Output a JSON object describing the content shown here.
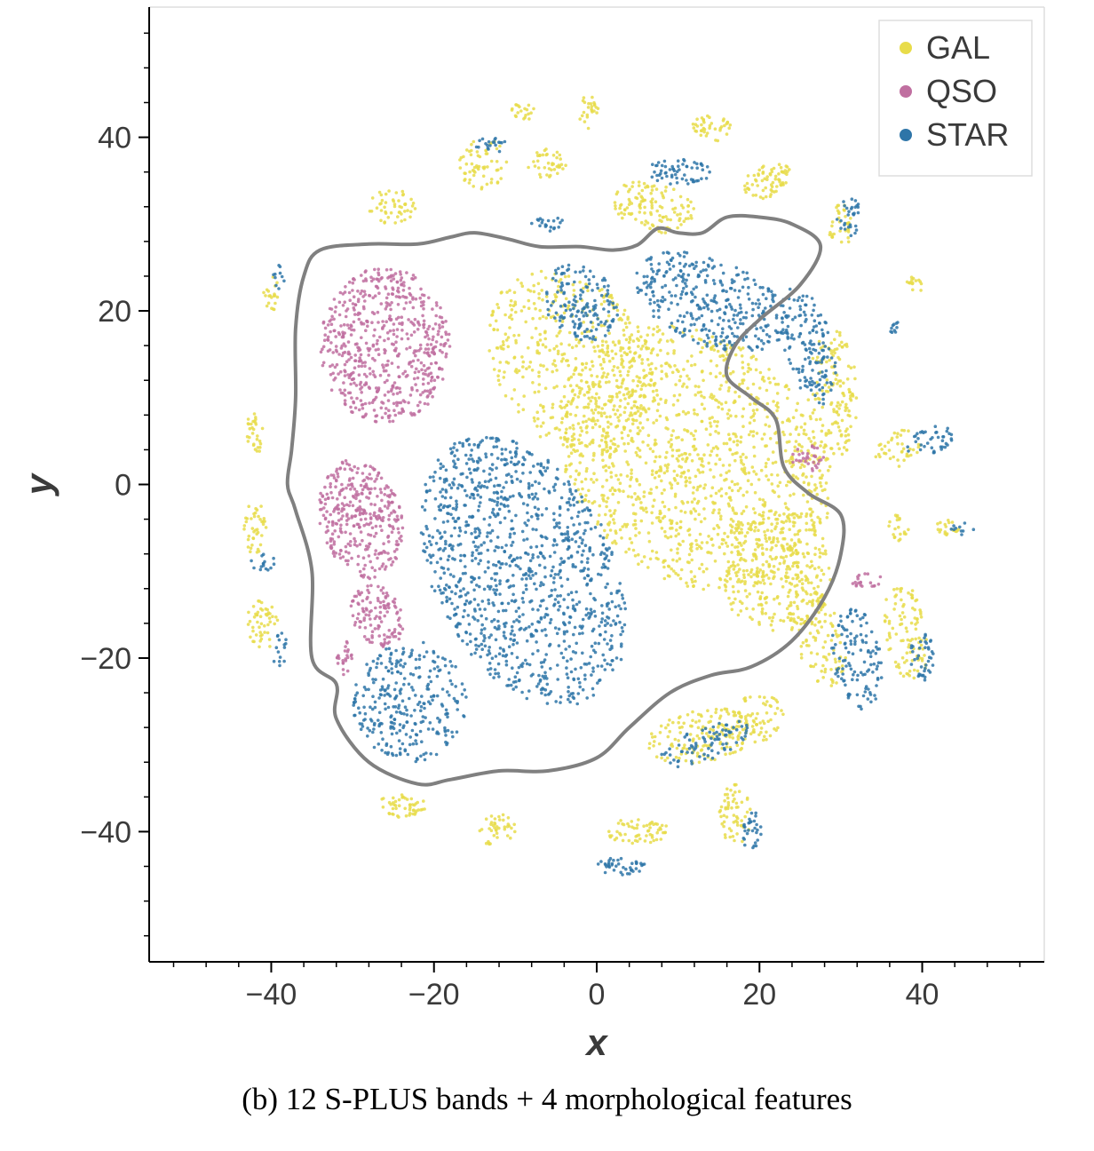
{
  "chart_data": {
    "type": "scatter",
    "xlabel": "x",
    "ylabel": "y",
    "xlim": [
      -55,
      55
    ],
    "ylim": [
      -55,
      55
    ],
    "xticks": [
      -40,
      -20,
      0,
      20,
      40
    ],
    "yticks": [
      -40,
      -20,
      0,
      20,
      40
    ],
    "xtick_labels": [
      "−40",
      "−20",
      "0",
      "20",
      "40"
    ],
    "ytick_labels": [
      "−40",
      "−20",
      "0",
      "20",
      "40"
    ],
    "minor_tick_step": 4,
    "legend": {
      "placement": "top-right",
      "entries": [
        "GAL",
        "QSO",
        "STAR"
      ]
    },
    "colors": {
      "GAL": "#e8dc4a",
      "QSO": "#c06fa0",
      "STAR": "#2e75a8",
      "contour": "#808080"
    },
    "series": [
      {
        "name": "GAL",
        "regions": [
          {
            "cx": 12,
            "cy": 3,
            "rx": 18,
            "ry": 14,
            "rot": -35,
            "n": 1300
          },
          {
            "cx": -3,
            "cy": 14,
            "rx": 12,
            "ry": 9,
            "rot": -50,
            "n": 450
          },
          {
            "cx": 22,
            "cy": -10,
            "rx": 7,
            "ry": 7,
            "rot": 0,
            "n": 250
          },
          {
            "cx": 29,
            "cy": 10,
            "rx": 3,
            "ry": 8,
            "rot": 0,
            "n": 150
          },
          {
            "cx": 27,
            "cy": -17,
            "rx": 3,
            "ry": 7,
            "rot": 20,
            "n": 130
          },
          {
            "cx": 38,
            "cy": -17,
            "rx": 2.5,
            "ry": 6,
            "rot": 10,
            "n": 100
          },
          {
            "cx": 7,
            "cy": 32,
            "rx": 5,
            "ry": 3,
            "rot": -10,
            "n": 120
          },
          {
            "cx": 21,
            "cy": 35,
            "rx": 3,
            "ry": 2,
            "rot": 20,
            "n": 70
          },
          {
            "cx": -14,
            "cy": 37,
            "rx": 3,
            "ry": 3,
            "rot": 0,
            "n": 60
          },
          {
            "cx": -25,
            "cy": 32,
            "rx": 3,
            "ry": 2,
            "rot": 0,
            "n": 50
          },
          {
            "cx": -6,
            "cy": 37,
            "rx": 2.5,
            "ry": 1.8,
            "rot": 0,
            "n": 40
          },
          {
            "cx": 14,
            "cy": 41,
            "rx": 2.5,
            "ry": 1.5,
            "rot": 0,
            "n": 40
          },
          {
            "cx": -1,
            "cy": 43,
            "rx": 1.2,
            "ry": 2,
            "rot": 0,
            "n": 25
          },
          {
            "cx": -9,
            "cy": 43,
            "rx": 1.5,
            "ry": 1,
            "rot": 0,
            "n": 20
          },
          {
            "cx": 30,
            "cy": 30,
            "rx": 1.5,
            "ry": 3,
            "rot": 0,
            "n": 35
          },
          {
            "cx": 37,
            "cy": 4,
            "rx": 3,
            "ry": 2,
            "rot": 30,
            "n": 40
          },
          {
            "cx": 37,
            "cy": -5,
            "rx": 1.5,
            "ry": 1.5,
            "rot": 0,
            "n": 20
          },
          {
            "cx": 43,
            "cy": -5,
            "rx": 1.5,
            "ry": 1,
            "rot": 0,
            "n": 20
          },
          {
            "cx": 13,
            "cy": -29,
            "rx": 7,
            "ry": 3,
            "rot": 10,
            "n": 160
          },
          {
            "cx": 20,
            "cy": -27,
            "rx": 3,
            "ry": 3,
            "rot": 0,
            "n": 60
          },
          {
            "cx": 17,
            "cy": -38,
            "rx": 2,
            "ry": 3.5,
            "rot": 0,
            "n": 60
          },
          {
            "cx": 5,
            "cy": -40,
            "rx": 4,
            "ry": 1.5,
            "rot": 0,
            "n": 60
          },
          {
            "cx": -12,
            "cy": -40,
            "rx": 2.5,
            "ry": 2,
            "rot": 0,
            "n": 40
          },
          {
            "cx": -24,
            "cy": -37,
            "rx": 3,
            "ry": 1.5,
            "rot": 0,
            "n": 50
          },
          {
            "cx": -42,
            "cy": -5,
            "rx": 1.5,
            "ry": 3,
            "rot": 0,
            "n": 40
          },
          {
            "cx": -41,
            "cy": -16,
            "rx": 2,
            "ry": 3,
            "rot": 0,
            "n": 50
          },
          {
            "cx": -42,
            "cy": 6,
            "rx": 1.2,
            "ry": 2.5,
            "rot": 0,
            "n": 30
          },
          {
            "cx": -40,
            "cy": 22,
            "rx": 1,
            "ry": 2,
            "rot": 0,
            "n": 20
          },
          {
            "cx": 39,
            "cy": 23,
            "rx": 1,
            "ry": 1.2,
            "rot": 0,
            "n": 15
          }
        ]
      },
      {
        "name": "QSO",
        "regions": [
          {
            "cx": -26,
            "cy": 16,
            "rx": 8,
            "ry": 9,
            "rot": 0,
            "n": 600
          },
          {
            "cx": -29,
            "cy": -4,
            "rx": 5,
            "ry": 7,
            "rot": 15,
            "n": 350
          },
          {
            "cx": -27,
            "cy": -15,
            "rx": 3,
            "ry": 4,
            "rot": 30,
            "n": 120
          },
          {
            "cx": -31,
            "cy": -20,
            "rx": 1,
            "ry": 2,
            "rot": 0,
            "n": 25
          },
          {
            "cx": 26,
            "cy": 3,
            "rx": 2,
            "ry": 1.5,
            "rot": 0,
            "n": 30
          },
          {
            "cx": 33,
            "cy": -11,
            "rx": 2,
            "ry": 1,
            "rot": 0,
            "n": 20
          }
        ]
      },
      {
        "name": "STAR",
        "regions": [
          {
            "cx": -9,
            "cy": -10,
            "rx": 11,
            "ry": 17,
            "rot": 30,
            "n": 1100
          },
          {
            "cx": -23,
            "cy": -25,
            "rx": 7,
            "ry": 7,
            "rot": 0,
            "n": 300
          },
          {
            "cx": 14,
            "cy": 21,
            "rx": 10,
            "ry": 5,
            "rot": -20,
            "n": 350
          },
          {
            "cx": -2,
            "cy": 21,
            "rx": 5,
            "ry": 4,
            "rot": -40,
            "n": 150
          },
          {
            "cx": 26,
            "cy": 16,
            "rx": 3,
            "ry": 7,
            "rot": 15,
            "n": 150
          },
          {
            "cx": 32,
            "cy": -20,
            "rx": 3,
            "ry": 6,
            "rot": 10,
            "n": 120
          },
          {
            "cx": 13,
            "cy": -30,
            "rx": 6,
            "ry": 2,
            "rot": 20,
            "n": 80
          },
          {
            "cx": 10,
            "cy": 36,
            "rx": 4,
            "ry": 1.5,
            "rot": 0,
            "n": 60
          },
          {
            "cx": 41,
            "cy": 5,
            "rx": 3,
            "ry": 1.5,
            "rot": 20,
            "n": 40
          },
          {
            "cx": 40,
            "cy": -20,
            "rx": 1.5,
            "ry": 3,
            "rot": 0,
            "n": 40
          },
          {
            "cx": 31,
            "cy": 31,
            "rx": 1.5,
            "ry": 2.5,
            "rot": 0,
            "n": 30
          },
          {
            "cx": 3,
            "cy": -44,
            "rx": 3,
            "ry": 1,
            "rot": 0,
            "n": 40
          },
          {
            "cx": 19,
            "cy": -40,
            "rx": 1.2,
            "ry": 2.5,
            "rot": 0,
            "n": 30
          },
          {
            "cx": -13,
            "cy": 39,
            "rx": 2,
            "ry": 1,
            "rot": 0,
            "n": 20
          },
          {
            "cx": -6,
            "cy": 30,
            "rx": 2,
            "ry": 1,
            "rot": 0,
            "n": 20
          },
          {
            "cx": -41,
            "cy": -9,
            "rx": 1.5,
            "ry": 1,
            "rot": 0,
            "n": 15
          },
          {
            "cx": -39,
            "cy": 24,
            "rx": 0.8,
            "ry": 1.5,
            "rot": 0,
            "n": 10
          },
          {
            "cx": -39,
            "cy": -19,
            "rx": 1,
            "ry": 2,
            "rot": 0,
            "n": 15
          },
          {
            "cx": 37,
            "cy": 18,
            "rx": 1,
            "ry": 1,
            "rot": 0,
            "n": 10
          },
          {
            "cx": 45,
            "cy": -5,
            "rx": 1.5,
            "ry": 0.8,
            "rot": 0,
            "n": 10
          }
        ]
      }
    ],
    "contour": [
      [
        -34,
        27
      ],
      [
        -28,
        27.7
      ],
      [
        -22,
        27.7
      ],
      [
        -18,
        28.5
      ],
      [
        -15,
        29
      ],
      [
        -11,
        28.3
      ],
      [
        -7,
        27.4
      ],
      [
        -2,
        27.4
      ],
      [
        2,
        27
      ],
      [
        5,
        27.6
      ],
      [
        7.5,
        29.5
      ],
      [
        10,
        29
      ],
      [
        13,
        29
      ],
      [
        16,
        30.8
      ],
      [
        20,
        30.8
      ],
      [
        24,
        30
      ],
      [
        27.5,
        27.5
      ],
      [
        25,
        23
      ],
      [
        20,
        19
      ],
      [
        17,
        16
      ],
      [
        16,
        12.5
      ],
      [
        19,
        10
      ],
      [
        22,
        7.5
      ],
      [
        23,
        2
      ],
      [
        26,
        -1
      ],
      [
        30,
        -3.5
      ],
      [
        30,
        -8
      ],
      [
        28,
        -13
      ],
      [
        24,
        -18
      ],
      [
        19,
        -21
      ],
      [
        14,
        -22
      ],
      [
        9,
        -24
      ],
      [
        4,
        -28
      ],
      [
        0,
        -31.5
      ],
      [
        -6,
        -33
      ],
      [
        -12,
        -33
      ],
      [
        -18,
        -34
      ],
      [
        -22,
        -34.5
      ],
      [
        -28,
        -32
      ],
      [
        -32,
        -27
      ],
      [
        -32,
        -23
      ],
      [
        -35,
        -20
      ],
      [
        -35,
        -10
      ],
      [
        -37,
        -3
      ],
      [
        -38,
        0
      ],
      [
        -37.5,
        4
      ],
      [
        -37,
        10
      ],
      [
        -37,
        18
      ],
      [
        -36,
        24
      ]
    ]
  },
  "caption": "(b) 12 S-PLUS bands + 4 morphological features"
}
